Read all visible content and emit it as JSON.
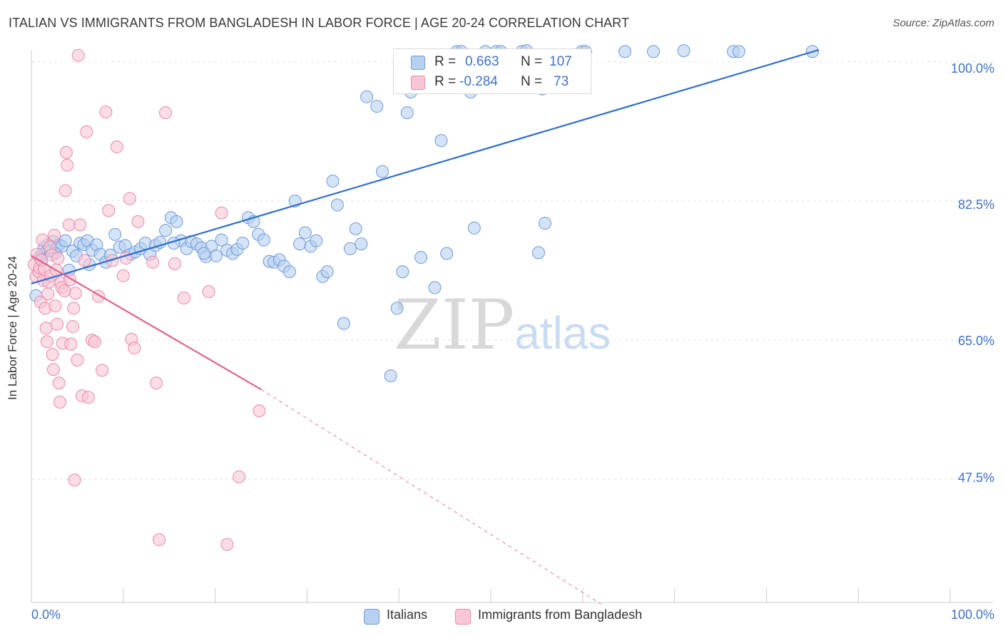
{
  "title": "ITALIAN VS IMMIGRANTS FROM BANGLADESH IN LABOR FORCE | AGE 20-24 CORRELATION CHART",
  "source": "Source: ZipAtlas.com",
  "watermark": {
    "zip": "ZIP",
    "atlas": "atlas"
  },
  "legend": {
    "r_label": "R =",
    "n_label": "N =",
    "rows": [
      {
        "r": "0.663",
        "n": "107"
      },
      {
        "r": "-0.284",
        "n": "73"
      }
    ]
  },
  "colors": {
    "blue_fill": "#b8d0f0",
    "blue_stroke": "#6f9bd8",
    "blue_line": "#2f6fcc",
    "pink_fill": "#f8c6d6",
    "pink_stroke": "#e98aa8",
    "pink_line": "#e0638f",
    "axis_text": "#3f72c6",
    "grid": "#e3e3e3"
  },
  "chart_data": {
    "type": "scatter",
    "xlabel": "",
    "ylabel": "In Labor Force | Age 20-24",
    "xlim": [
      0,
      100
    ],
    "ylim": [
      32,
      101.5
    ],
    "x_tick_labels": [
      "0.0%",
      "100.0%"
    ],
    "y_ticks": [
      100.0,
      82.5,
      65.0,
      47.5
    ],
    "y_tick_labels": [
      "100.0%",
      "82.5%",
      "65.0%",
      "47.5%"
    ],
    "grid": true,
    "series": [
      {
        "name": "Italians",
        "color": "blue",
        "r": 0.663,
        "n": 107,
        "trend": {
          "x": [
            0,
            85.7
          ],
          "y": [
            72.1,
            101.5
          ],
          "dashed_to": null
        },
        "points": [
          [
            0.5,
            70.6
          ],
          [
            0.9,
            75.4
          ],
          [
            1.2,
            75.8
          ],
          [
            1.4,
            76.6
          ],
          [
            1.8,
            77.0
          ],
          [
            2.1,
            76.2
          ],
          [
            2.4,
            77.4
          ],
          [
            2.7,
            76.5
          ],
          [
            3.0,
            77.0
          ],
          [
            3.3,
            76.8
          ],
          [
            3.7,
            77.5
          ],
          [
            4.1,
            73.8
          ],
          [
            4.5,
            76.2
          ],
          [
            4.9,
            75.6
          ],
          [
            5.3,
            77.2
          ],
          [
            5.7,
            77.0
          ],
          [
            6.1,
            77.5
          ],
          [
            6.6,
            76.3
          ],
          [
            7.1,
            77.0
          ],
          [
            7.5,
            75.8
          ],
          [
            8.1,
            74.8
          ],
          [
            8.6,
            75.7
          ],
          [
            9.1,
            78.3
          ],
          [
            9.6,
            76.7
          ],
          [
            10.2,
            76.9
          ],
          [
            10.8,
            75.8
          ],
          [
            11.3,
            76.1
          ],
          [
            11.9,
            76.5
          ],
          [
            12.4,
            77.2
          ],
          [
            12.9,
            75.8
          ],
          [
            13.5,
            76.9
          ],
          [
            14.0,
            77.3
          ],
          [
            14.6,
            78.8
          ],
          [
            15.2,
            80.4
          ],
          [
            15.8,
            79.9
          ],
          [
            16.3,
            77.5
          ],
          [
            16.9,
            76.5
          ],
          [
            17.4,
            77.4
          ],
          [
            18.0,
            77.1
          ],
          [
            18.5,
            76.6
          ],
          [
            19.0,
            75.5
          ],
          [
            19.6,
            76.8
          ],
          [
            20.1,
            75.6
          ],
          [
            20.7,
            77.6
          ],
          [
            21.3,
            76.3
          ],
          [
            21.9,
            75.9
          ],
          [
            22.4,
            76.4
          ],
          [
            23.0,
            77.2
          ],
          [
            23.6,
            80.4
          ],
          [
            24.2,
            79.9
          ],
          [
            24.7,
            78.3
          ],
          [
            25.3,
            77.6
          ],
          [
            25.9,
            74.9
          ],
          [
            26.4,
            74.8
          ],
          [
            27.0,
            75.1
          ],
          [
            27.5,
            74.3
          ],
          [
            28.1,
            73.6
          ],
          [
            28.7,
            82.5
          ],
          [
            29.2,
            77.1
          ],
          [
            29.8,
            78.5
          ],
          [
            30.4,
            76.8
          ],
          [
            31.0,
            77.5
          ],
          [
            31.7,
            73.0
          ],
          [
            32.2,
            73.6
          ],
          [
            32.8,
            85.0
          ],
          [
            33.3,
            82.0
          ],
          [
            34.0,
            67.1
          ],
          [
            34.7,
            76.5
          ],
          [
            35.3,
            79.0
          ],
          [
            35.9,
            77.1
          ],
          [
            36.5,
            95.6
          ],
          [
            37.6,
            94.4
          ],
          [
            38.2,
            86.2
          ],
          [
            39.1,
            60.5
          ],
          [
            39.8,
            69.0
          ],
          [
            40.4,
            73.6
          ],
          [
            40.9,
            93.6
          ],
          [
            41.3,
            96.2
          ],
          [
            42.4,
            75.4
          ],
          [
            43.9,
            71.6
          ],
          [
            44.6,
            90.1
          ],
          [
            45.2,
            75.9
          ],
          [
            46.3,
            101.3
          ],
          [
            46.8,
            101.3
          ],
          [
            47.8,
            96.2
          ],
          [
            48.2,
            79.1
          ],
          [
            49.4,
            101.3
          ],
          [
            50.6,
            101.3
          ],
          [
            51.1,
            101.3
          ],
          [
            53.4,
            101.3
          ],
          [
            53.9,
            101.4
          ],
          [
            55.6,
            96.6
          ],
          [
            55.2,
            76.0
          ],
          [
            55.9,
            79.7
          ],
          [
            59.9,
            101.3
          ],
          [
            60.3,
            101.3
          ],
          [
            64.6,
            101.3
          ],
          [
            67.7,
            101.3
          ],
          [
            71.0,
            101.4
          ],
          [
            76.4,
            101.3
          ],
          [
            77.0,
            101.3
          ],
          [
            85.0,
            101.3
          ],
          [
            1.1,
            75.0
          ],
          [
            2.6,
            75.9
          ],
          [
            6.3,
            74.5
          ],
          [
            15.5,
            77.2
          ],
          [
            18.8,
            75.9
          ]
        ]
      },
      {
        "name": "Immigrants from Bangladesh",
        "color": "pink",
        "r": -0.284,
        "n": 73,
        "trend": {
          "x": [
            0,
            25.0
          ],
          "y": [
            75.6,
            58.8
          ],
          "dashed_to": {
            "x": 62.0,
            "y": 31.8
          }
        },
        "points": [
          [
            0.3,
            74.5
          ],
          [
            0.5,
            73.0
          ],
          [
            0.6,
            75.8
          ],
          [
            0.8,
            73.6
          ],
          [
            0.9,
            74.1
          ],
          [
            1.0,
            69.8
          ],
          [
            1.1,
            75.1
          ],
          [
            1.2,
            77.6
          ],
          [
            1.3,
            72.5
          ],
          [
            1.4,
            73.9
          ],
          [
            1.5,
            69.0
          ],
          [
            1.6,
            66.5
          ],
          [
            1.7,
            64.8
          ],
          [
            1.8,
            70.8
          ],
          [
            1.9,
            72.3
          ],
          [
            2.0,
            76.7
          ],
          [
            2.1,
            73.1
          ],
          [
            2.2,
            75.7
          ],
          [
            2.3,
            63.2
          ],
          [
            2.4,
            61.3
          ],
          [
            2.5,
            78.2
          ],
          [
            2.6,
            69.3
          ],
          [
            2.7,
            73.8
          ],
          [
            2.8,
            67.0
          ],
          [
            2.9,
            75.3
          ],
          [
            3.0,
            59.6
          ],
          [
            3.1,
            57.2
          ],
          [
            3.2,
            72.2
          ],
          [
            3.3,
            71.6
          ],
          [
            3.4,
            64.6
          ],
          [
            3.6,
            71.2
          ],
          [
            3.7,
            83.8
          ],
          [
            3.8,
            88.6
          ],
          [
            3.9,
            87.0
          ],
          [
            4.1,
            79.5
          ],
          [
            4.2,
            72.6
          ],
          [
            4.3,
            64.5
          ],
          [
            4.5,
            66.7
          ],
          [
            4.6,
            69.0
          ],
          [
            4.7,
            47.4
          ],
          [
            4.8,
            70.9
          ],
          [
            5.0,
            62.5
          ],
          [
            5.1,
            100.8
          ],
          [
            5.3,
            79.5
          ],
          [
            5.5,
            58.0
          ],
          [
            5.8,
            75.0
          ],
          [
            6.0,
            91.2
          ],
          [
            6.2,
            57.8
          ],
          [
            6.6,
            65.0
          ],
          [
            6.9,
            64.8
          ],
          [
            7.3,
            70.5
          ],
          [
            7.7,
            61.2
          ],
          [
            8.1,
            93.7
          ],
          [
            8.4,
            81.3
          ],
          [
            8.8,
            75.0
          ],
          [
            9.3,
            89.3
          ],
          [
            10.0,
            73.1
          ],
          [
            10.3,
            75.3
          ],
          [
            10.7,
            82.8
          ],
          [
            10.9,
            65.1
          ],
          [
            11.2,
            64.0
          ],
          [
            11.6,
            79.9
          ],
          [
            13.2,
            74.8
          ],
          [
            13.6,
            59.6
          ],
          [
            13.9,
            39.9
          ],
          [
            14.6,
            93.6
          ],
          [
            15.6,
            74.6
          ],
          [
            16.6,
            70.3
          ],
          [
            19.3,
            71.1
          ],
          [
            20.7,
            81.0
          ],
          [
            21.3,
            39.3
          ],
          [
            22.6,
            47.8
          ],
          [
            24.8,
            56.1
          ]
        ]
      }
    ]
  },
  "bottom_legend": [
    "Italians",
    "Immigrants from Bangladesh"
  ]
}
